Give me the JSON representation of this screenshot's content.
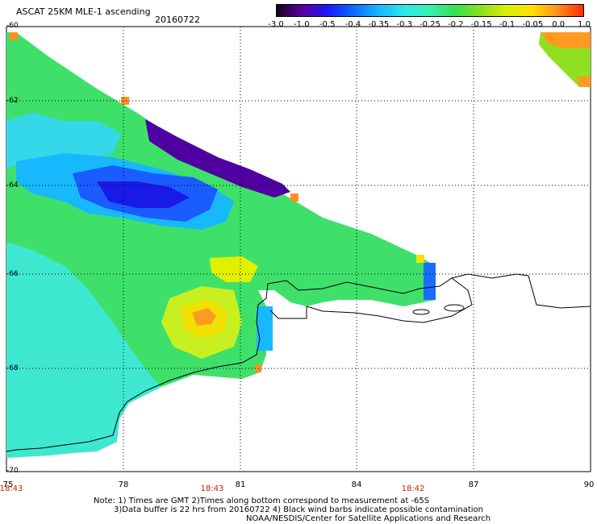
{
  "header": {
    "title": "ASCAT 25KM MLE-1 ascending",
    "date": "20160722"
  },
  "colorbar": {
    "labels": [
      "-3.0",
      "-1.0",
      "-0.5",
      "-0.4",
      "-0.35",
      "-0.3",
      "-0.25",
      "-0.2",
      "-0.15",
      "-0.1",
      "-0.05",
      "0.0",
      "1.0"
    ],
    "colors": [
      "#1a001a",
      "#5a00a0",
      "#1a1aff",
      "#0b6cff",
      "#18b8ff",
      "#2ce8e8",
      "#38f0b0",
      "#36e050",
      "#8ee020",
      "#d8f000",
      "#ffe000",
      "#ff9020",
      "#ff3000"
    ]
  },
  "axes": {
    "y_labels": [
      "-60",
      "-62",
      "-64",
      "-66",
      "-68",
      "-70"
    ],
    "x_labels": [
      "75",
      "78",
      "81",
      "84",
      "87",
      "90"
    ],
    "time_labels": [
      "18:43",
      "18:43",
      "18:42"
    ]
  },
  "notes": {
    "line1": "Note: 1) Times are GMT 2)Times along bottom correspond to measurement at -65S",
    "line2": "3)Data buffer is 22 hrs from 20160722 4) Black wind barbs indicate possible contamination",
    "line3": "NOAA/NESDIS/Center for Satellite Applications and Research"
  }
}
